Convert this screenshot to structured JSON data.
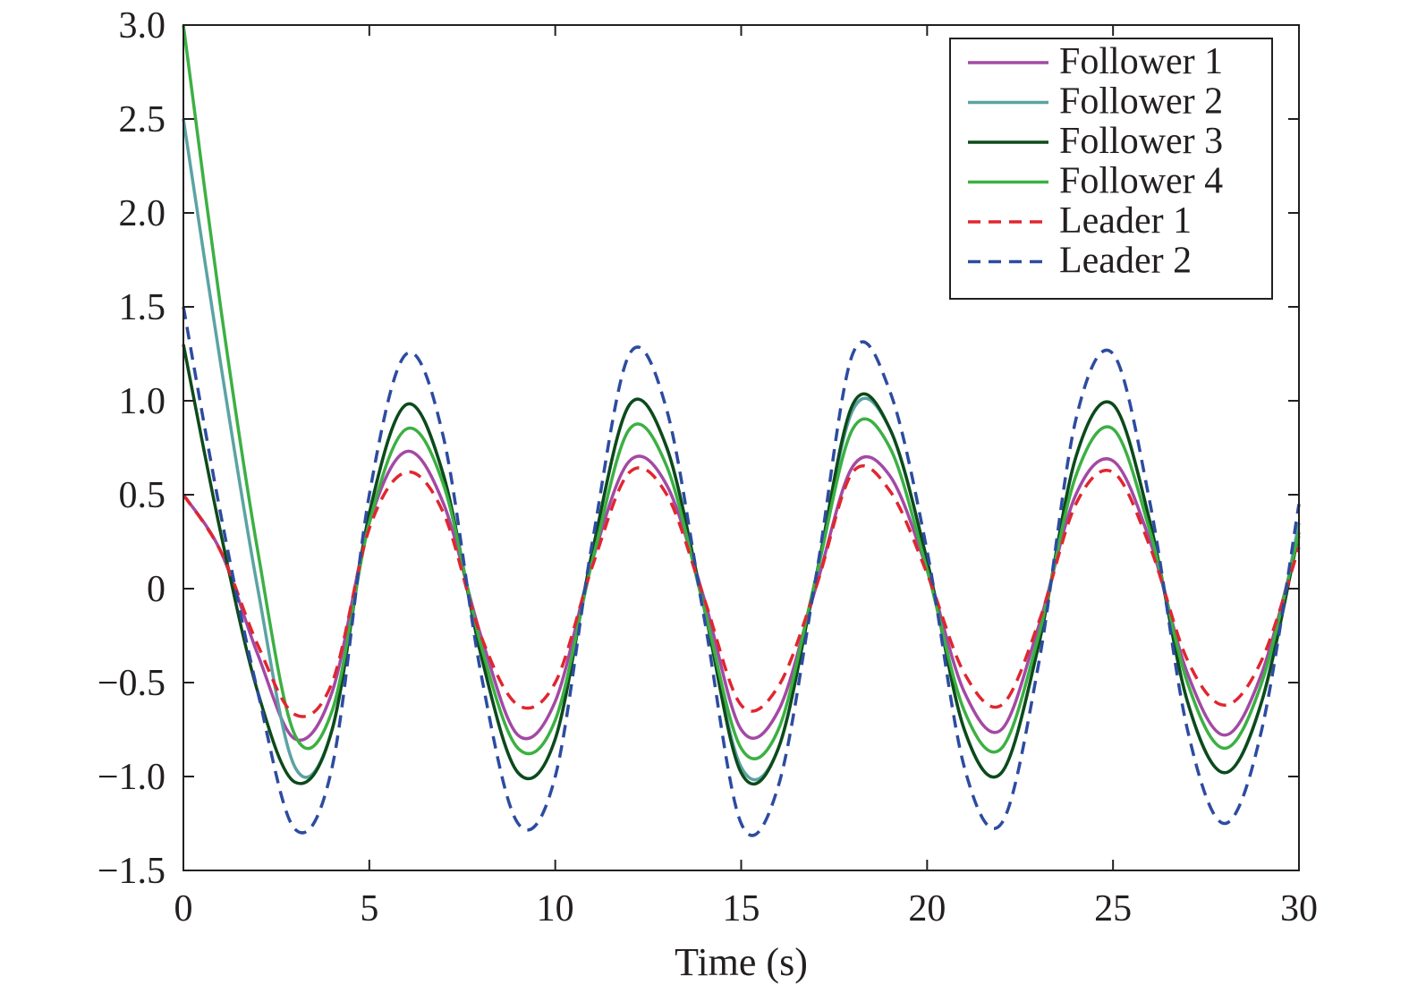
{
  "chart_data": {
    "type": "line",
    "xlabel": "Time (s)",
    "ylabel": "",
    "xlim": [
      0,
      30
    ],
    "ylim": [
      -1.5,
      3.0
    ],
    "xticks": [
      0,
      5,
      10,
      15,
      20,
      25,
      30
    ],
    "xtick_labels": [
      "0",
      "5",
      "10",
      "15",
      "20",
      "25",
      "30"
    ],
    "yticks": [
      -1.5,
      -1.0,
      -0.5,
      0,
      0.5,
      1.0,
      1.5,
      2.0,
      2.5,
      3.0
    ],
    "ytick_labels": [
      "−1.5",
      "−1.0",
      "−0.5",
      "0",
      "0.5",
      "1.0",
      "1.5",
      "2.0",
      "2.5",
      "3.0"
    ],
    "grid": false,
    "legend_position": "top-right",
    "x": [
      0,
      1,
      2,
      3,
      4,
      5,
      6,
      7,
      8,
      9,
      10,
      11,
      12,
      13,
      14,
      15,
      16,
      17,
      18,
      19,
      20,
      21,
      22,
      23,
      24,
      25,
      26,
      27,
      28,
      29,
      30
    ],
    "series": [
      {
        "name": "Follower 1",
        "color": "#a349a4",
        "dash": "solid",
        "values": [
          0.5,
          0.2,
          -0.35,
          -0.8,
          -0.55,
          0.35,
          0.73,
          0.45,
          -0.25,
          -0.78,
          -0.6,
          0.15,
          0.68,
          0.55,
          -0.05,
          -0.75,
          -0.65,
          0.0,
          0.65,
          0.6,
          0.1,
          -0.55,
          -0.75,
          -0.2,
          0.5,
          0.68,
          0.25,
          -0.45,
          -0.78,
          -0.45,
          0.28
        ]
      },
      {
        "name": "Follower 2",
        "color": "#5ba3a3",
        "dash": "solid",
        "values": [
          2.5,
          1.2,
          0.0,
          -0.95,
          -0.75,
          0.4,
          0.98,
          0.6,
          -0.35,
          -0.98,
          -0.8,
          0.2,
          0.98,
          0.75,
          -0.1,
          -0.95,
          -0.85,
          0.05,
          0.95,
          0.85,
          0.15,
          -0.75,
          -0.98,
          -0.3,
          0.7,
          0.98,
          0.35,
          -0.6,
          -0.98,
          -0.6,
          0.35
        ]
      },
      {
        "name": "Follower 3",
        "color": "#0d4a1a",
        "dash": "solid",
        "values": [
          1.3,
          0.3,
          -0.55,
          -1.03,
          -0.75,
          0.4,
          0.98,
          0.6,
          -0.35,
          -0.98,
          -0.8,
          0.2,
          0.98,
          0.75,
          -0.1,
          -0.98,
          -0.85,
          0.05,
          0.98,
          0.85,
          0.15,
          -0.75,
          -0.98,
          -0.3,
          0.7,
          0.98,
          0.35,
          -0.6,
          -0.98,
          -0.6,
          0.3
        ]
      },
      {
        "name": "Follower 4",
        "color": "#3cb043",
        "dash": "solid",
        "values": [
          3.0,
          1.5,
          0.2,
          -0.78,
          -0.65,
          0.35,
          0.85,
          0.55,
          -0.3,
          -0.85,
          -0.7,
          0.15,
          0.85,
          0.65,
          -0.1,
          -0.85,
          -0.75,
          0.05,
          0.85,
          0.75,
          0.1,
          -0.65,
          -0.85,
          -0.25,
          0.6,
          0.85,
          0.3,
          -0.5,
          -0.85,
          -0.5,
          0.3
        ]
      },
      {
        "name": "Leader 1",
        "color": "#e0262f",
        "dash": "dashed",
        "values": [
          0.5,
          0.2,
          -0.3,
          -0.67,
          -0.5,
          0.32,
          0.62,
          0.4,
          -0.25,
          -0.62,
          -0.5,
          0.12,
          0.62,
          0.5,
          -0.05,
          -0.62,
          -0.52,
          0.0,
          0.62,
          0.52,
          0.08,
          -0.45,
          -0.62,
          -0.18,
          0.45,
          0.62,
          0.22,
          -0.38,
          -0.62,
          -0.38,
          0.22
        ]
      },
      {
        "name": "Leader 2",
        "color": "#2d4ba0",
        "dash": "dashed",
        "values": [
          1.5,
          0.4,
          -0.55,
          -1.28,
          -0.95,
          0.5,
          1.25,
          0.8,
          -0.45,
          -1.25,
          -1.0,
          0.25,
          1.25,
          0.95,
          -0.15,
          -1.25,
          -1.05,
          0.05,
          1.25,
          1.05,
          0.2,
          -0.95,
          -1.25,
          -0.4,
          0.9,
          1.25,
          0.45,
          -0.75,
          -1.25,
          -0.75,
          0.45
        ]
      }
    ]
  }
}
